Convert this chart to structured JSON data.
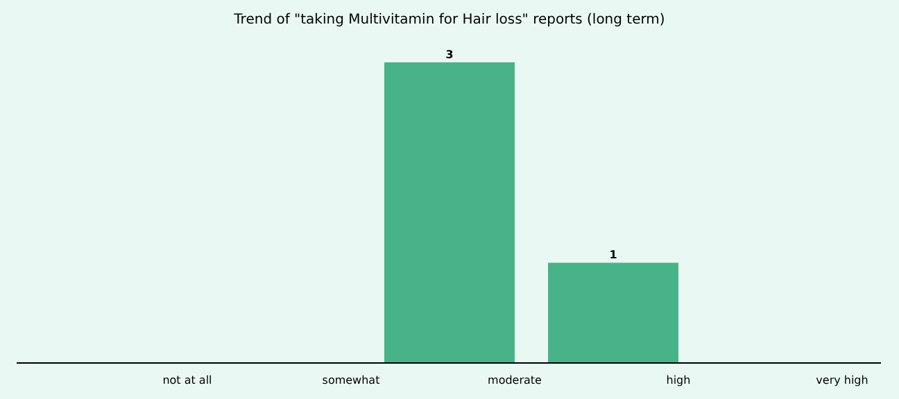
{
  "chart_data": {
    "type": "bar",
    "title": "Trend of \"taking Multivitamin for Hair loss\" reports (long term)",
    "categories": [
      "not at all",
      "somewhat",
      "moderate",
      "high",
      "very high"
    ],
    "values": [
      0,
      0,
      3,
      1,
      0
    ],
    "value_labels": [
      null,
      null,
      "3",
      "1",
      null
    ],
    "color": "#48b389"
  }
}
